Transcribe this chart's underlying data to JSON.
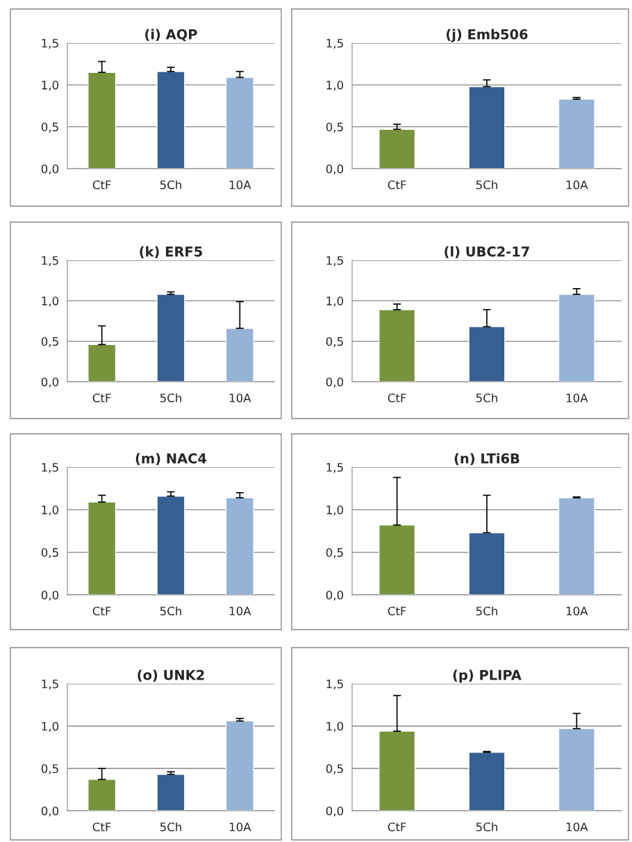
{
  "chart_data": [
    {
      "type": "bar",
      "title": "(i) AQP",
      "categories": [
        "CtF",
        "5Ch",
        "10A"
      ],
      "values": [
        1.15,
        1.16,
        1.09
      ],
      "errors": [
        [
          1.15,
          1.28
        ],
        [
          1.16,
          1.21
        ],
        [
          1.09,
          1.16
        ]
      ],
      "colors": [
        "#77933c",
        "#366092",
        "#95b3d7"
      ],
      "ylim": [
        0,
        1.5
      ],
      "yticks": [
        {
          "value": 0,
          "label": "0,0"
        },
        {
          "value": 0.5,
          "label": "0,5"
        },
        {
          "value": 1,
          "label": "1,0"
        },
        {
          "value": 1.5,
          "label": "1,5"
        }
      ],
      "grid": "y"
    },
    {
      "type": "bar",
      "title": "(j) Emb506",
      "categories": [
        "CtF",
        "5Ch",
        "10A"
      ],
      "values": [
        0.47,
        0.98,
        0.83
      ],
      "errors": [
        [
          0.47,
          0.53
        ],
        [
          0.98,
          1.06
        ],
        [
          0.83,
          0.85
        ]
      ],
      "colors": [
        "#77933c",
        "#366092",
        "#95b3d7"
      ],
      "ylim": [
        0,
        1.5
      ],
      "yticks": [
        {
          "value": 0,
          "label": "0,0"
        },
        {
          "value": 0.5,
          "label": "0,5"
        },
        {
          "value": 1,
          "label": "1,0"
        },
        {
          "value": 1.5,
          "label": "1,5"
        }
      ],
      "grid": "y"
    },
    {
      "type": "bar",
      "title": "(k) ERF5",
      "categories": [
        "CtF",
        "5Ch",
        "10A"
      ],
      "values": [
        0.46,
        1.08,
        0.66
      ],
      "errors": [
        [
          0.46,
          0.69
        ],
        [
          1.08,
          1.11
        ],
        [
          0.66,
          0.99
        ]
      ],
      "colors": [
        "#77933c",
        "#366092",
        "#95b3d7"
      ],
      "ylim": [
        0,
        1.5
      ],
      "yticks": [
        {
          "value": 0,
          "label": "0,0"
        },
        {
          "value": 0.5,
          "label": "0,5"
        },
        {
          "value": 1,
          "label": "1,0"
        },
        {
          "value": 1.5,
          "label": "1,5"
        }
      ],
      "grid": "y"
    },
    {
      "type": "bar",
      "title": "(l) UBC2-17",
      "categories": [
        "CtF",
        "5Ch",
        "10A"
      ],
      "values": [
        0.89,
        0.68,
        1.08
      ],
      "errors": [
        [
          0.89,
          0.96
        ],
        [
          0.68,
          0.89
        ],
        [
          1.08,
          1.15
        ]
      ],
      "colors": [
        "#77933c",
        "#366092",
        "#95b3d7"
      ],
      "ylim": [
        0,
        1.5
      ],
      "yticks": [
        {
          "value": 0,
          "label": "0,0"
        },
        {
          "value": 0.5,
          "label": "0,5"
        },
        {
          "value": 1,
          "label": "1,0"
        },
        {
          "value": 1.5,
          "label": "1,5"
        }
      ],
      "grid": "y"
    },
    {
      "type": "bar",
      "title": "(m) NAC4",
      "categories": [
        "CtF",
        "5Ch",
        "10A"
      ],
      "values": [
        1.09,
        1.16,
        1.14
      ],
      "errors": [
        [
          1.09,
          1.17
        ],
        [
          1.16,
          1.21
        ],
        [
          1.14,
          1.2
        ]
      ],
      "colors": [
        "#77933c",
        "#366092",
        "#95b3d7"
      ],
      "ylim": [
        0,
        1.5
      ],
      "yticks": [
        {
          "value": 0,
          "label": "0,0"
        },
        {
          "value": 0.5,
          "label": "0,5"
        },
        {
          "value": 1,
          "label": "1,0"
        },
        {
          "value": 1.5,
          "label": "1,5"
        }
      ],
      "grid": "y"
    },
    {
      "type": "bar",
      "title": "(n) LTi6B",
      "categories": [
        "CtF",
        "5Ch",
        "10A"
      ],
      "values": [
        0.82,
        0.73,
        1.14
      ],
      "errors": [
        [
          0.82,
          1.38
        ],
        [
          0.73,
          1.17
        ],
        [
          1.14,
          1.15
        ]
      ],
      "colors": [
        "#77933c",
        "#366092",
        "#95b3d7"
      ],
      "ylim": [
        0,
        1.5
      ],
      "yticks": [
        {
          "value": 0,
          "label": "0,0"
        },
        {
          "value": 0.5,
          "label": "0,5"
        },
        {
          "value": 1,
          "label": "1,0"
        },
        {
          "value": 1.5,
          "label": "1,5"
        }
      ],
      "grid": "y"
    },
    {
      "type": "bar",
      "title": "(o) UNK2",
      "categories": [
        "CtF",
        "5Ch",
        "10A"
      ],
      "values": [
        0.37,
        0.43,
        1.06
      ],
      "errors": [
        [
          0.37,
          0.5
        ],
        [
          0.43,
          0.46
        ],
        [
          1.06,
          1.09
        ]
      ],
      "colors": [
        "#77933c",
        "#366092",
        "#95b3d7"
      ],
      "ylim": [
        0,
        1.5
      ],
      "yticks": [
        {
          "value": 0,
          "label": "0,0"
        },
        {
          "value": 0.5,
          "label": "0,5"
        },
        {
          "value": 1,
          "label": "1,0"
        },
        {
          "value": 1.5,
          "label": "1,5"
        }
      ],
      "grid": "y"
    },
    {
      "type": "bar",
      "title": "(p) PLIPA",
      "categories": [
        "CtF",
        "5Ch",
        "10A"
      ],
      "values": [
        0.94,
        0.69,
        0.97
      ],
      "errors": [
        [
          0.94,
          1.36
        ],
        [
          0.69,
          0.7
        ],
        [
          0.97,
          1.15
        ]
      ],
      "colors": [
        "#77933c",
        "#366092",
        "#95b3d7"
      ],
      "ylim": [
        0,
        1.5
      ],
      "yticks": [
        {
          "value": 0,
          "label": "0,0"
        },
        {
          "value": 0.5,
          "label": "0,5"
        },
        {
          "value": 1,
          "label": "1,0"
        },
        {
          "value": 1.5,
          "label": "1,5"
        }
      ],
      "grid": "y"
    }
  ]
}
